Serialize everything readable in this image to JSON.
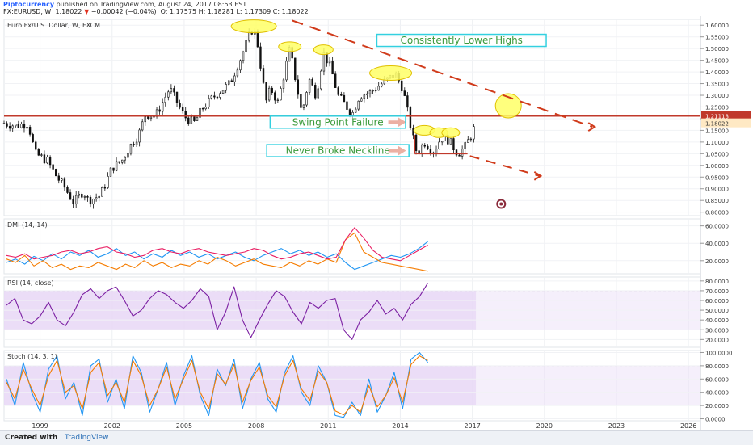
{
  "header": {
    "author": "Piptocurrency",
    "published": "published on TradingView.com, August 24, 2017 08:53 EST",
    "symbol": "FX:EURUSD, W",
    "price": "1.18022",
    "change": "−0.00042 (−0.04%)",
    "ohlc": "O: 1.17575  H: 1.18281  L: 1.17309  C: 1.18022"
  },
  "footer": {
    "created_with": "Created with",
    "brand": "TradingView"
  },
  "colors": {
    "candle": "#111111",
    "sr_line": "#c0392b",
    "ellipse_fill": "#ffff66",
    "ellipse_stroke": "#e0c000",
    "annot_box": "#33d0e0",
    "annot_text": "#3a9a3a",
    "arrow": "#d03a1a",
    "dmi_plus": "#2196f3",
    "dmi_minus": "#f57c00",
    "adx": "#e91e63",
    "rsi": "#7b1fa2",
    "stoch_k": "#2196f3",
    "stoch_d": "#f57c00",
    "band": "#e7d7f6"
  },
  "chart_data": [
    {
      "type": "candlestick",
      "title": "Euro Fx/U.S. Dollar, W, FXCM",
      "x_tick_labels": [
        "1999",
        "2002",
        "2005",
        "2008",
        "2011",
        "2014",
        "2017",
        "2020",
        "2023",
        "2026"
      ],
      "y_tick_labels": [
        "1.60000",
        "1.55000",
        "1.50000",
        "1.45000",
        "1.40000",
        "1.35000",
        "1.30000",
        "1.25000",
        "1.20000",
        "1.15000",
        "1.10000",
        "1.05000",
        "1.00000",
        "0.95000",
        "0.90000",
        "0.85000",
        "0.80000"
      ],
      "ylim": [
        0.785,
        1.625
      ],
      "close_path": [
        [
          1998.0,
          1.18
        ],
        [
          1998.5,
          1.17
        ],
        [
          1999.0,
          1.18
        ],
        [
          1999.3,
          1.05
        ],
        [
          1999.8,
          1.02
        ],
        [
          2000.2,
          0.95
        ],
        [
          2000.5,
          0.91
        ],
        [
          2000.9,
          0.84
        ],
        [
          2001.3,
          0.89
        ],
        [
          2001.5,
          0.85
        ],
        [
          2002.0,
          0.87
        ],
        [
          2002.5,
          0.99
        ],
        [
          2002.9,
          1.02
        ],
        [
          2003.3,
          1.09
        ],
        [
          2003.6,
          1.13
        ],
        [
          2003.9,
          1.22
        ],
        [
          2004.3,
          1.21
        ],
        [
          2004.9,
          1.33
        ],
        [
          2005.5,
          1.21
        ],
        [
          2005.9,
          1.18
        ],
        [
          2006.3,
          1.25
        ],
        [
          2006.9,
          1.31
        ],
        [
          2007.4,
          1.35
        ],
        [
          2007.9,
          1.47
        ],
        [
          2008.3,
          1.58
        ],
        [
          2008.5,
          1.56
        ],
        [
          2008.9,
          1.27
        ],
        [
          2009.1,
          1.33
        ],
        [
          2009.4,
          1.27
        ],
        [
          2009.9,
          1.5
        ],
        [
          2010.4,
          1.22
        ],
        [
          2010.7,
          1.37
        ],
        [
          2011.0,
          1.3
        ],
        [
          2011.3,
          1.48
        ],
        [
          2011.6,
          1.42
        ],
        [
          2011.9,
          1.3
        ],
        [
          2012.5,
          1.22
        ],
        [
          2012.8,
          1.3
        ],
        [
          2013.2,
          1.31
        ],
        [
          2013.6,
          1.34
        ],
        [
          2014.0,
          1.37
        ],
        [
          2014.3,
          1.39
        ],
        [
          2014.6,
          1.33
        ],
        [
          2015.0,
          1.13
        ],
        [
          2015.2,
          1.05
        ],
        [
          2015.5,
          1.1
        ],
        [
          2015.9,
          1.06
        ],
        [
          2016.2,
          1.12
        ],
        [
          2016.5,
          1.11
        ],
        [
          2016.9,
          1.05
        ],
        [
          2017.2,
          1.08
        ],
        [
          2017.5,
          1.14
        ],
        [
          2017.65,
          1.18
        ]
      ],
      "annotations": {
        "lower_highs": "Consistently Lower Highs",
        "swing_fail": "Swing Point Failure",
        "neckline": "Never Broke Neckline"
      },
      "levels": {
        "resistance": 1.2111,
        "neckline": 1.05
      },
      "price_labels": [
        "1.21118",
        "1.18022"
      ]
    },
    {
      "type": "line",
      "title": "DMI (14, 14)",
      "y_tick_labels": [
        "60.0000",
        "40.0000",
        "20.0000"
      ],
      "ylim": [
        5,
        68
      ],
      "series": [
        {
          "color": "#2196f3",
          "values": [
            18,
            22,
            16,
            25,
            20,
            28,
            22,
            30,
            26,
            32,
            24,
            28,
            34,
            26,
            30,
            22,
            28,
            24,
            32,
            26,
            30,
            24,
            28,
            22,
            26,
            30,
            24,
            20,
            26,
            30,
            34,
            28,
            32,
            26,
            30,
            24,
            28,
            18,
            10,
            14,
            18,
            22,
            26,
            24,
            28,
            34,
            42
          ]
        },
        {
          "color": "#f57c00",
          "values": [
            22,
            18,
            26,
            14,
            20,
            12,
            16,
            10,
            14,
            12,
            18,
            14,
            10,
            16,
            12,
            20,
            14,
            18,
            12,
            16,
            14,
            20,
            16,
            24,
            20,
            14,
            18,
            22,
            16,
            14,
            12,
            18,
            14,
            20,
            16,
            22,
            18,
            44,
            52,
            30,
            24,
            18,
            16,
            14,
            12,
            10,
            8
          ]
        },
        {
          "color": "#e91e63",
          "values": [
            26,
            24,
            28,
            22,
            24,
            26,
            30,
            32,
            28,
            30,
            34,
            36,
            30,
            28,
            24,
            26,
            32,
            34,
            30,
            28,
            32,
            34,
            30,
            28,
            26,
            28,
            30,
            34,
            32,
            26,
            22,
            24,
            28,
            30,
            26,
            22,
            24,
            44,
            58,
            46,
            32,
            24,
            22,
            20,
            26,
            32,
            38
          ]
        }
      ]
    },
    {
      "type": "line",
      "title": "RSI (14, close)",
      "y_tick_labels": [
        "80.0000",
        "70.0000",
        "60.0000",
        "50.0000",
        "40.0000",
        "30.0000",
        "20.0000"
      ],
      "ylim": [
        12,
        84
      ],
      "band": [
        30,
        70
      ],
      "series": [
        {
          "color": "#7b1fa2",
          "values": [
            55,
            62,
            40,
            36,
            44,
            58,
            40,
            34,
            48,
            66,
            72,
            62,
            70,
            74,
            60,
            44,
            50,
            62,
            70,
            66,
            58,
            52,
            60,
            72,
            64,
            30,
            48,
            74,
            40,
            22,
            40,
            56,
            70,
            64,
            48,
            36,
            58,
            52,
            60,
            62,
            30,
            20,
            40,
            48,
            60,
            46,
            52,
            40,
            56,
            64,
            78
          ]
        }
      ]
    },
    {
      "type": "line",
      "title": "Stoch (14, 3, 1)",
      "y_tick_labels": [
        "100.0000",
        "80.0000",
        "60.0000",
        "40.0000",
        "20.0000",
        "0.0000"
      ],
      "ylim": [
        -3,
        103
      ],
      "band": [
        20,
        80
      ],
      "series": [
        {
          "color": "#2196f3",
          "values": [
            60,
            20,
            85,
            40,
            10,
            75,
            95,
            30,
            55,
            5,
            80,
            90,
            25,
            60,
            15,
            95,
            70,
            10,
            45,
            85,
            20,
            65,
            95,
            35,
            5,
            75,
            50,
            90,
            15,
            60,
            85,
            30,
            10,
            70,
            95,
            40,
            20,
            80,
            55,
            5,
            2,
            25,
            5,
            60,
            10,
            35,
            70,
            15,
            90,
            100,
            85
          ]
        },
        {
          "color": "#f57c00",
          "values": [
            55,
            30,
            75,
            45,
            20,
            65,
            88,
            40,
            50,
            15,
            70,
            85,
            35,
            55,
            25,
            88,
            65,
            20,
            45,
            78,
            30,
            60,
            88,
            40,
            15,
            68,
            52,
            82,
            25,
            58,
            78,
            35,
            18,
            65,
            88,
            45,
            28,
            72,
            55,
            12,
            6,
            20,
            10,
            50,
            18,
            35,
            62,
            25,
            82,
            95,
            88
          ]
        }
      ]
    }
  ]
}
